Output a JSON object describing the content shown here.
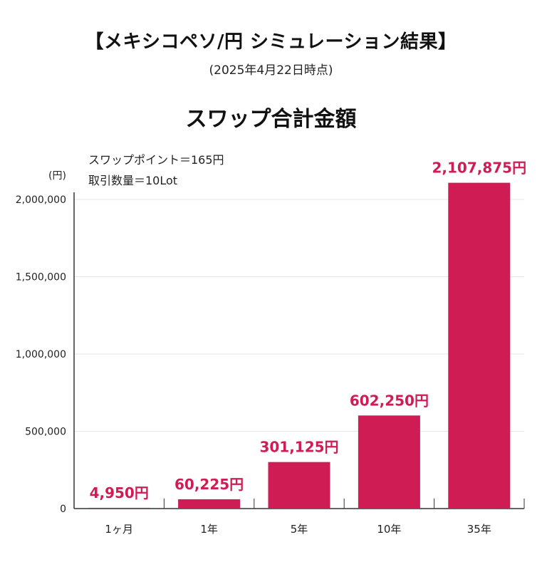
{
  "page": {
    "title": "【メキシコペソ/円  シミュレーション結果】",
    "subtitle": "(2025年4月22日時点)"
  },
  "chart_data": {
    "type": "bar",
    "title": "スワップ合計金額",
    "notes": [
      "スワップポイント＝165円",
      "取引数量＝10Lot"
    ],
    "ylabel": "(円)",
    "ylim": [
      0,
      2000000
    ],
    "yticks": [
      0,
      500000,
      1000000,
      1500000,
      2000000
    ],
    "ytick_labels": [
      "0",
      "500,000",
      "1,000,000",
      "1,500,000",
      "2,000,000"
    ],
    "categories": [
      "1ヶ月",
      "1年",
      "5年",
      "10年",
      "35年"
    ],
    "values": [
      4950,
      60225,
      301125,
      602250,
      2107875
    ],
    "value_labels": [
      "4,950円",
      "60,225円",
      "301,125円",
      "602,250円",
      "2,107,875円"
    ],
    "grid": true,
    "colors": {
      "bar": "#d01c54",
      "value_label": "#d01c54",
      "grid": "#e6e6e6",
      "axis": "#333333"
    }
  }
}
